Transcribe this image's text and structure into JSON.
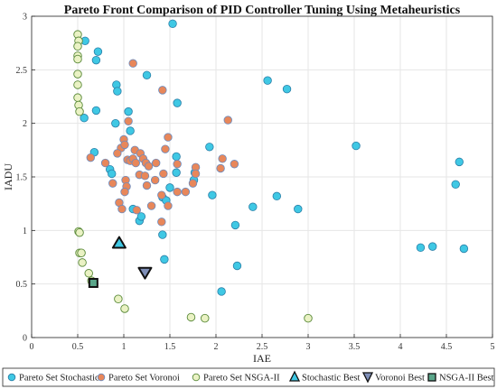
{
  "chart_data": {
    "type": "scatter",
    "title": "Pareto Front Comparison of PID Controller Tuning Using Metaheuristics",
    "xlabel": "IAE",
    "ylabel": "IADU",
    "xlim": [
      0,
      5
    ],
    "ylim": [
      0,
      3
    ],
    "xticks": [
      "0",
      "0.5",
      "1",
      "1.5",
      "2",
      "2.5",
      "3",
      "3.5",
      "4",
      "4.5",
      "5"
    ],
    "yticks": [
      "0",
      "0.5",
      "1",
      "1.5",
      "2",
      "2.5",
      "3"
    ],
    "grid": true,
    "legend_position": "bottom",
    "series": [
      {
        "name": "Pareto Set Stochastic",
        "marker": "circle-filled",
        "color": "#3fc8e4",
        "edge": "#2a7fa8",
        "points": [
          [
            1.53,
            2.93
          ],
          [
            0.58,
            2.77
          ],
          [
            0.72,
            2.67
          ],
          [
            0.7,
            2.59
          ],
          [
            1.25,
            2.45
          ],
          [
            0.92,
            2.36
          ],
          [
            0.93,
            2.3
          ],
          [
            1.58,
            2.19
          ],
          [
            0.7,
            2.12
          ],
          [
            0.57,
            2.05
          ],
          [
            1.05,
            2.11
          ],
          [
            0.91,
            2.0
          ],
          [
            1.07,
            1.93
          ],
          [
            0.68,
            1.73
          ],
          [
            0.85,
            1.57
          ],
          [
            0.87,
            1.53
          ],
          [
            1.57,
            1.69
          ],
          [
            1.57,
            1.54
          ],
          [
            1.42,
            1.31
          ],
          [
            1.46,
            1.28
          ],
          [
            1.5,
            1.4
          ],
          [
            1.1,
            1.2
          ],
          [
            1.17,
            1.09
          ],
          [
            1.19,
            1.13
          ],
          [
            1.42,
            0.96
          ],
          [
            1.44,
            0.73
          ],
          [
            1.77,
            1.54
          ],
          [
            1.76,
            1.47
          ],
          [
            1.93,
            1.78
          ],
          [
            1.96,
            1.33
          ],
          [
            2.21,
            1.05
          ],
          [
            2.4,
            1.22
          ],
          [
            2.23,
            0.67
          ],
          [
            2.06,
            0.43
          ],
          [
            2.56,
            2.4
          ],
          [
            2.77,
            2.32
          ],
          [
            2.66,
            1.32
          ],
          [
            2.89,
            1.2
          ],
          [
            3.52,
            1.79
          ],
          [
            4.22,
            0.84
          ],
          [
            4.35,
            0.85
          ],
          [
            4.6,
            1.43
          ],
          [
            4.64,
            1.64
          ],
          [
            4.69,
            0.83
          ]
        ]
      },
      {
        "name": "Pareto Set Voronoi",
        "marker": "circle-filled",
        "color": "#e8875a",
        "edge": "#6b8bbf",
        "points": [
          [
            1.1,
            2.56
          ],
          [
            1.42,
            2.31
          ],
          [
            2.13,
            2.03
          ],
          [
            1.05,
            2.02
          ],
          [
            1.48,
            1.87
          ],
          [
            0.97,
            1.77
          ],
          [
            1.0,
            1.85
          ],
          [
            1.01,
            1.8
          ],
          [
            0.93,
            1.72
          ],
          [
            1.04,
            1.66
          ],
          [
            1.07,
            1.65
          ],
          [
            1.12,
            1.75
          ],
          [
            1.18,
            1.72
          ],
          [
            1.1,
            1.67
          ],
          [
            1.13,
            1.63
          ],
          [
            1.21,
            1.67
          ],
          [
            1.24,
            1.63
          ],
          [
            1.27,
            1.6
          ],
          [
            1.35,
            1.63
          ],
          [
            1.45,
            1.76
          ],
          [
            1.58,
            1.62
          ],
          [
            1.78,
            1.59
          ],
          [
            1.78,
            1.53
          ],
          [
            2.07,
            1.67
          ],
          [
            2.05,
            1.58
          ],
          [
            2.2,
            1.62
          ],
          [
            0.64,
            1.68
          ],
          [
            0.8,
            1.63
          ],
          [
            0.88,
            1.44
          ],
          [
            1.02,
            1.47
          ],
          [
            1.03,
            1.41
          ],
          [
            1.01,
            1.36
          ],
          [
            1.17,
            1.52
          ],
          [
            1.23,
            1.51
          ],
          [
            1.25,
            1.42
          ],
          [
            1.34,
            1.47
          ],
          [
            1.43,
            1.53
          ],
          [
            1.41,
            1.33
          ],
          [
            1.48,
            1.23
          ],
          [
            1.58,
            1.36
          ],
          [
            1.67,
            1.36
          ],
          [
            1.75,
            1.44
          ],
          [
            0.95,
            1.26
          ],
          [
            0.98,
            1.2
          ],
          [
            1.14,
            1.19
          ],
          [
            1.3,
            1.23
          ],
          [
            1.41,
            1.08
          ]
        ]
      },
      {
        "name": "Pareto Set NSGA-II",
        "marker": "circle-open",
        "color": "#eaf2c4",
        "edge": "#5a8a3a",
        "points": [
          [
            0.5,
            2.83
          ],
          [
            0.51,
            2.77
          ],
          [
            0.5,
            2.72
          ],
          [
            0.5,
            2.63
          ],
          [
            0.5,
            2.6
          ],
          [
            0.5,
            2.46
          ],
          [
            0.5,
            2.36
          ],
          [
            0.5,
            2.24
          ],
          [
            0.51,
            2.17
          ],
          [
            0.52,
            2.11
          ],
          [
            0.51,
            0.99
          ],
          [
            0.52,
            0.98
          ],
          [
            0.52,
            0.79
          ],
          [
            0.54,
            0.79
          ],
          [
            0.55,
            0.7
          ],
          [
            0.62,
            0.6
          ],
          [
            0.65,
            0.53
          ],
          [
            0.94,
            0.36
          ],
          [
            1.01,
            0.27
          ],
          [
            1.73,
            0.19
          ],
          [
            1.88,
            0.18
          ],
          [
            3.0,
            0.18
          ]
        ]
      },
      {
        "name": "Stochastic Best",
        "marker": "triangle-up",
        "color": "#3fc8e4",
        "edge": "#111111",
        "points": [
          [
            0.95,
            0.88
          ]
        ]
      },
      {
        "name": "Voronoi Best",
        "marker": "triangle-down",
        "color": "#7f8fb8",
        "edge": "#111111",
        "points": [
          [
            1.23,
            0.61
          ]
        ]
      },
      {
        "name": "NSGA-II Best",
        "marker": "square",
        "color": "#5aa68a",
        "edge": "#111111",
        "points": [
          [
            0.67,
            0.51
          ]
        ]
      }
    ]
  }
}
